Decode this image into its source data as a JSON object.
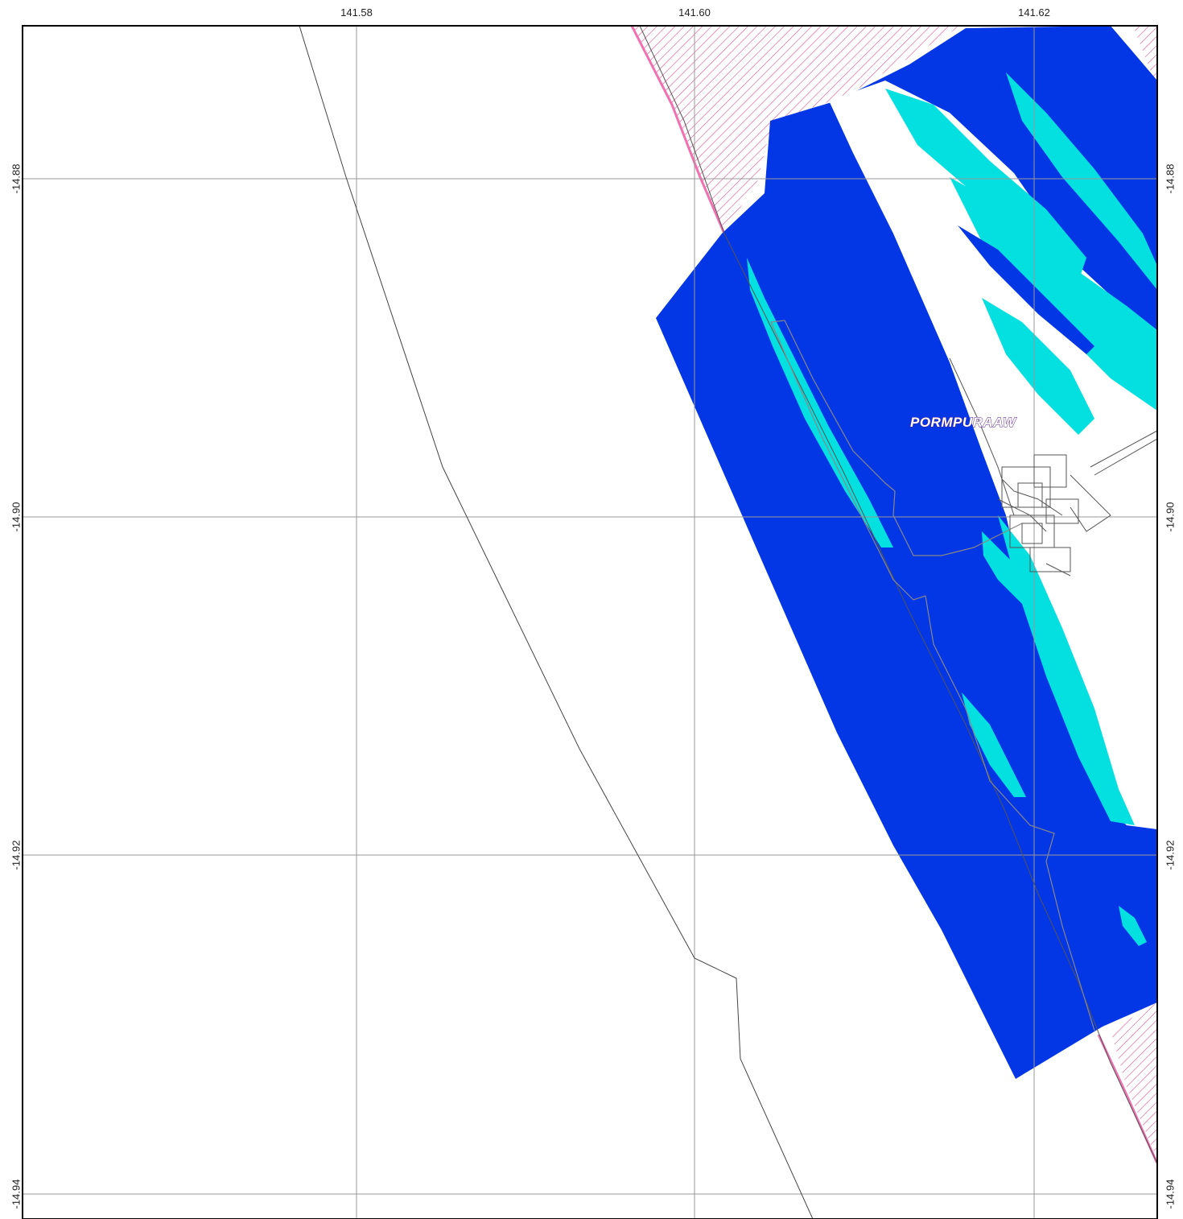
{
  "map": {
    "place_label": "PORMPURAAW",
    "longitude_ticks": [
      "141.58",
      "141.60",
      "141.62"
    ],
    "latitude_ticks": [
      "-14.88",
      "-14.90",
      "-14.92",
      "-14.94"
    ],
    "colors": {
      "deep_water": "#0336e5",
      "shallow_water": "#04e0e0",
      "hatch_zone": "#f070b0",
      "grid": "#999999",
      "road": "#444444",
      "label_outline": "#5a1f8a"
    }
  }
}
